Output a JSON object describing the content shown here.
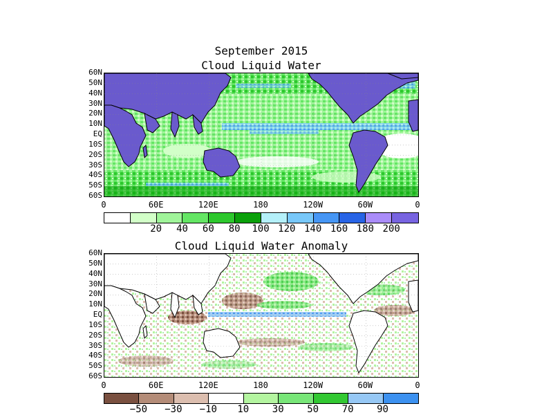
{
  "figure": {
    "title": "September 2015"
  },
  "panels": [
    {
      "title": "Cloud Liquid Water",
      "lat_labels": [
        "60N",
        "50N",
        "40N",
        "30N",
        "20N",
        "10N",
        "EQ",
        "10S",
        "20S",
        "30S",
        "40S",
        "50S",
        "60S"
      ],
      "lon_labels": [
        "0",
        "60E",
        "120E",
        "180",
        "120W",
        "60W",
        "0"
      ],
      "colorbar": {
        "colors": [
          "#ffffff",
          "#d2ffc8",
          "#a0f59a",
          "#64e664",
          "#2dc82d",
          "#0aa00a",
          "#b4f0fa",
          "#78c8fa",
          "#4696f5",
          "#2864e6",
          "#aa8cfa",
          "#7864e1"
        ],
        "labels": [
          "20",
          "40",
          "60",
          "80",
          "100",
          "120",
          "140",
          "160",
          "180",
          "200"
        ]
      },
      "land_color": "#6a5acd",
      "legend_visible": true
    },
    {
      "title": "Cloud Liquid Water Anomaly",
      "lat_labels": [
        "60N",
        "50N",
        "40N",
        "30N",
        "20N",
        "10N",
        "EQ",
        "10S",
        "20S",
        "30S",
        "40S",
        "50S",
        "60S"
      ],
      "lon_labels": [
        "0",
        "60E",
        "120E",
        "180",
        "120W",
        "60W",
        "0"
      ],
      "colorbar": {
        "colors": [
          "#7a5040",
          "#b48c78",
          "#dcbeaf",
          "#ffffff",
          "#b4f5a0",
          "#78e678",
          "#32c832",
          "#96c8f5",
          "#3c91f0"
        ],
        "labels": [
          "−50",
          "−30",
          "−10",
          "10",
          "30",
          "50",
          "70",
          "90"
        ]
      },
      "land_color": "#ffffff"
    }
  ]
}
